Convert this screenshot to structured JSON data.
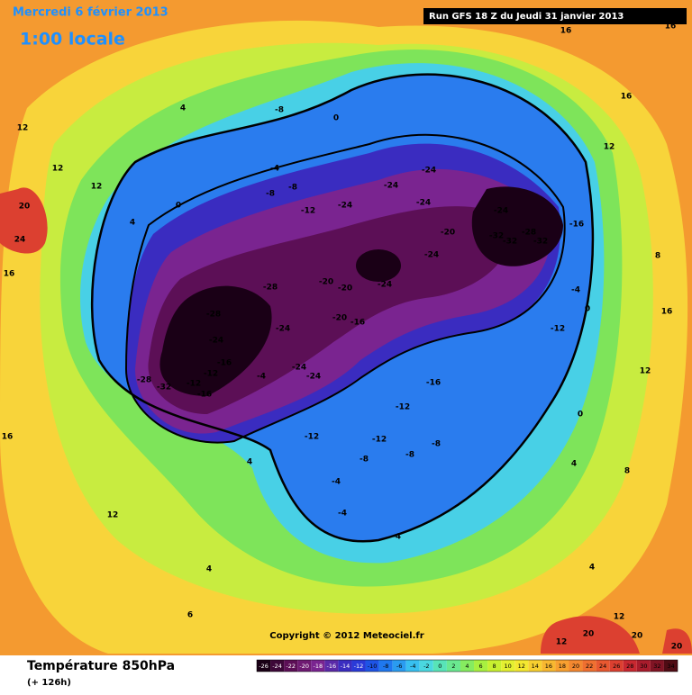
{
  "header": {
    "date": "Mercredi 6 février 2013",
    "time": "1:00 locale",
    "run": "Run GFS 18 Z du Jeudi 31 janvier 2013"
  },
  "map": {
    "copyright": "Copyright © 2012 Meteociel.fr",
    "contour_labels": [
      -8,
      0,
      0,
      -4,
      -8,
      -8,
      -12,
      -24,
      -24,
      -24,
      -24,
      -24,
      -16,
      -20,
      -32,
      -28,
      -32,
      -32,
      -24,
      -28,
      -20,
      -20,
      -24,
      -28,
      -20,
      -16,
      -24,
      -24,
      -12,
      -4,
      0,
      -28,
      -32,
      -12,
      -12,
      -16,
      -16,
      -4,
      -24,
      -24,
      -16,
      -12,
      -12,
      -12,
      -8,
      -8,
      -8,
      -4,
      -4,
      -4,
      4,
      12,
      4,
      6,
      12,
      12,
      12,
      4,
      20,
      24,
      16,
      4,
      16,
      16,
      16,
      12,
      8,
      16,
      12,
      0,
      16,
      4,
      8,
      4,
      12,
      20,
      20,
      20,
      12
    ]
  },
  "footer": {
    "title": "Température 850hPa",
    "subtitle": "(+ 126h)"
  },
  "legend": {
    "ticks": [
      -26,
      -24,
      -22,
      -20,
      -18,
      -16,
      -14,
      -12,
      -10,
      -8,
      -6,
      -4,
      -2,
      0,
      2,
      4,
      6,
      8,
      10,
      12,
      14,
      16,
      18,
      20,
      22,
      24,
      26,
      28,
      30,
      32,
      34
    ],
    "colors": [
      "#1a0016",
      "#3d0838",
      "#5c0f56",
      "#6e1a72",
      "#7a2490",
      "#5a2aa8",
      "#3a2cc0",
      "#2a3ad8",
      "#1e54e6",
      "#1f78ee",
      "#2a9cf0",
      "#38c0f0",
      "#4ad8e0",
      "#58e4b8",
      "#6ae890",
      "#86ec60",
      "#a8f040",
      "#c8f030",
      "#e4f030",
      "#f4e830",
      "#f8d030",
      "#f8b830",
      "#f8a030",
      "#f48830",
      "#f07030",
      "#e85830",
      "#dc4030",
      "#c82830",
      "#a81c2c",
      "#801424",
      "#500c14"
    ]
  }
}
